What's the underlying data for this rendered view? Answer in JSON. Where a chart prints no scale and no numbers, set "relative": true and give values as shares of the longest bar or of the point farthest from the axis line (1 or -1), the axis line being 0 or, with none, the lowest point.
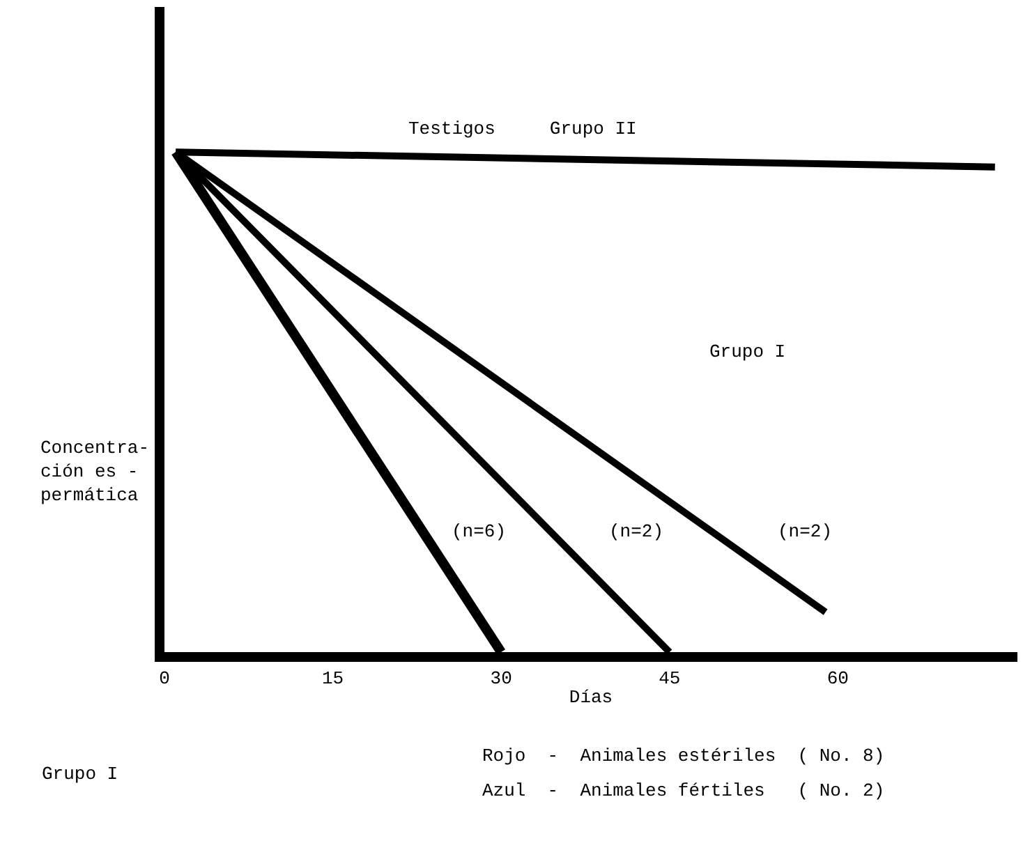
{
  "chart_data": {
    "type": "line",
    "relative": true,
    "xlabel": "Días",
    "ylabel": "Concentra-\nción es -\npermática",
    "xlim": [
      0,
      76
    ],
    "xticks": [
      0,
      15,
      30,
      45,
      60
    ],
    "marker": "none",
    "line_style": "solid",
    "series": [
      {
        "color": "#000000",
        "x": [
          1,
          74
        ],
        "values": [
          1,
          0.97
        ]
      },
      {
        "color": "#000000",
        "x": [
          1,
          30
        ],
        "values": [
          1,
          0
        ]
      },
      {
        "color": "#000000",
        "x": [
          1,
          45
        ],
        "values": [
          1,
          0
        ]
      },
      {
        "color": "#000000",
        "x": [
          1,
          58.9
        ],
        "values": [
          1,
          0.08
        ]
      }
    ],
    "annotations": [
      "Testigos     Grupo II",
      "Grupo I",
      "(n=6)",
      "(n=2)",
      "(n=2)",
      "Rojo  -  Animales estériles  ( No. 8)",
      "Azul  -  Animales fértiles   ( No. 2)",
      "Grupo I"
    ]
  }
}
